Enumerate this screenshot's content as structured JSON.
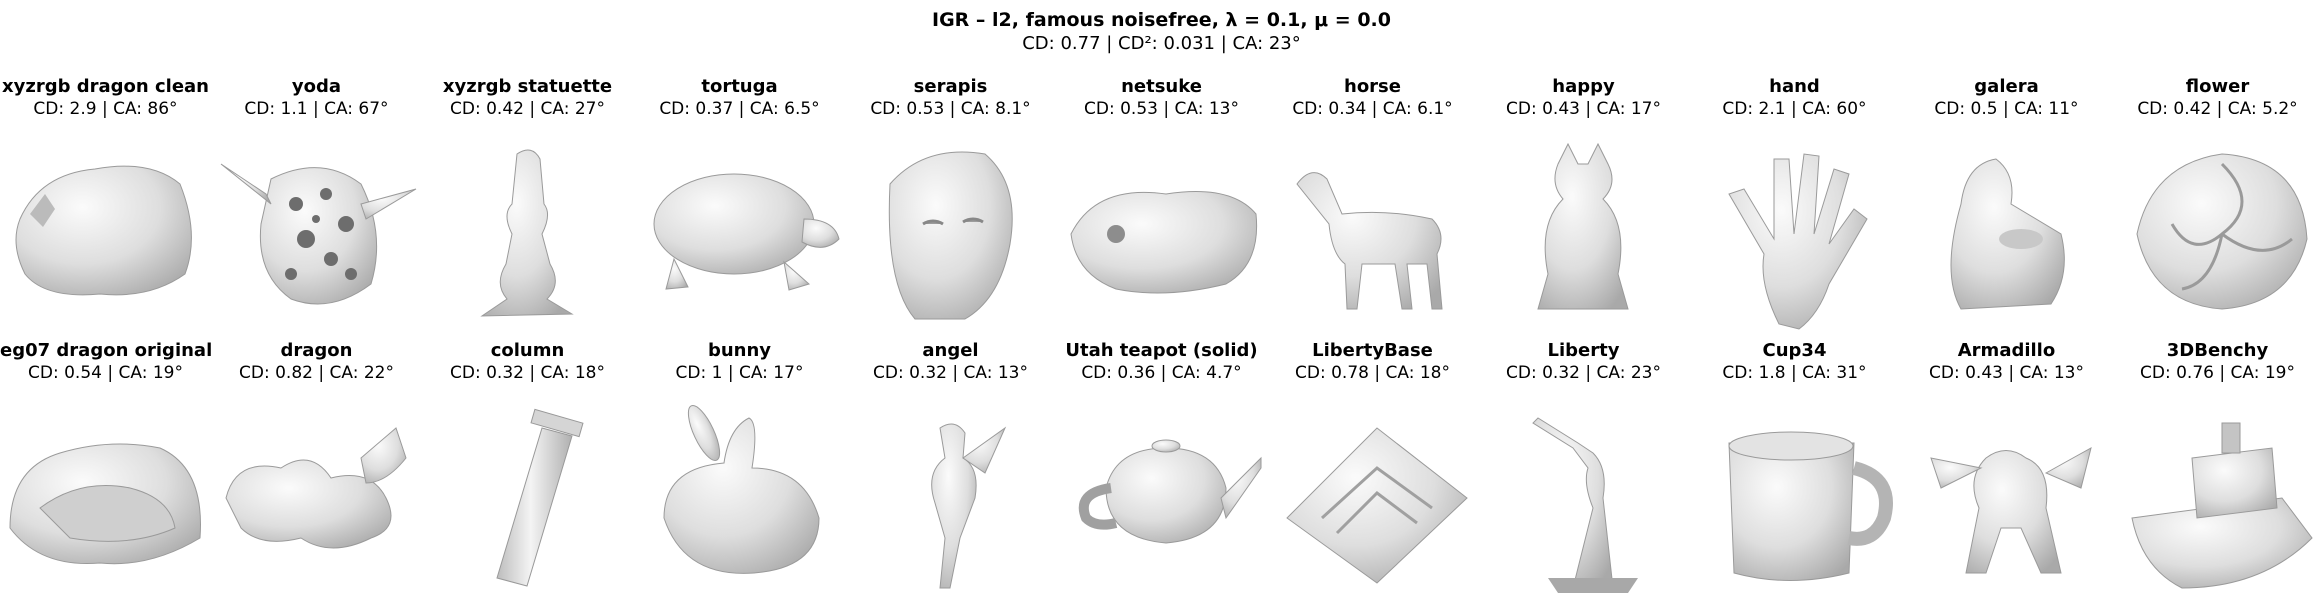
{
  "title": "IGR – l2,  famous noisefree,  λ  =  0.1,  μ  =  0.0",
  "subtitle": "CD: 0.77 | CD²: 0.031 | CA: 23°",
  "rows": [
    [
      {
        "name": "xyzrgb dragon clean",
        "metric": "CD: 2.9 | CA: 86°",
        "icon": "blob-icon"
      },
      {
        "name": "yoda",
        "metric": "CD: 1.1 | CA: 67°",
        "icon": "porous-head-icon"
      },
      {
        "name": "xyzrgb statuette",
        "metric": "CD: 0.42 | CA: 27°",
        "icon": "statuette-icon"
      },
      {
        "name": "tortuga",
        "metric": "CD: 0.37 | CA: 6.5°",
        "icon": "turtle-icon"
      },
      {
        "name": "serapis",
        "metric": "CD: 0.53 | CA: 8.1°",
        "icon": "bust-icon"
      },
      {
        "name": "netsuke",
        "metric": "CD: 0.53 | CA: 13°",
        "icon": "netsuke-icon"
      },
      {
        "name": "horse",
        "metric": "CD: 0.34 | CA: 6.1°",
        "icon": "horse-icon"
      },
      {
        "name": "happy",
        "metric": "CD: 0.43 | CA: 17°",
        "icon": "buddha-icon"
      },
      {
        "name": "hand",
        "metric": "CD: 2.1 | CA: 60°",
        "icon": "hand-icon"
      },
      {
        "name": "galera",
        "metric": "CD: 0.5 | CA: 11°",
        "icon": "galera-icon"
      },
      {
        "name": "flower",
        "metric": "CD: 0.42 | CA: 5.2°",
        "icon": "flower-icon"
      }
    ],
    [
      {
        "name": "eg07 dragon original",
        "metric": "CD: 0.54 | CA: 19°",
        "icon": "dragon-shell-icon"
      },
      {
        "name": "dragon",
        "metric": "CD: 0.82 | CA: 22°",
        "icon": "dragon-icon"
      },
      {
        "name": "column",
        "metric": "CD: 0.32 | CA: 18°",
        "icon": "column-icon"
      },
      {
        "name": "bunny",
        "metric": "CD: 1 | CA: 17°",
        "icon": "bunny-icon"
      },
      {
        "name": "angel",
        "metric": "CD: 0.32 | CA: 13°",
        "icon": "angel-icon"
      },
      {
        "name": "Utah teapot (solid)",
        "metric": "CD: 0.36 | CA: 4.7°",
        "icon": "teapot-icon"
      },
      {
        "name": "LibertyBase",
        "metric": "CD: 0.78 | CA: 18°",
        "icon": "pedestal-icon"
      },
      {
        "name": "Liberty",
        "metric": "CD: 0.32 | CA: 23°",
        "icon": "liberty-icon"
      },
      {
        "name": "Cup34",
        "metric": "CD: 1.8 | CA: 31°",
        "icon": "cup-icon"
      },
      {
        "name": "Armadillo",
        "metric": "CD: 0.43 | CA: 13°",
        "icon": "armadillo-icon"
      },
      {
        "name": "3DBenchy",
        "metric": "CD: 0.76 | CA: 19°",
        "icon": "boat-icon"
      }
    ]
  ]
}
